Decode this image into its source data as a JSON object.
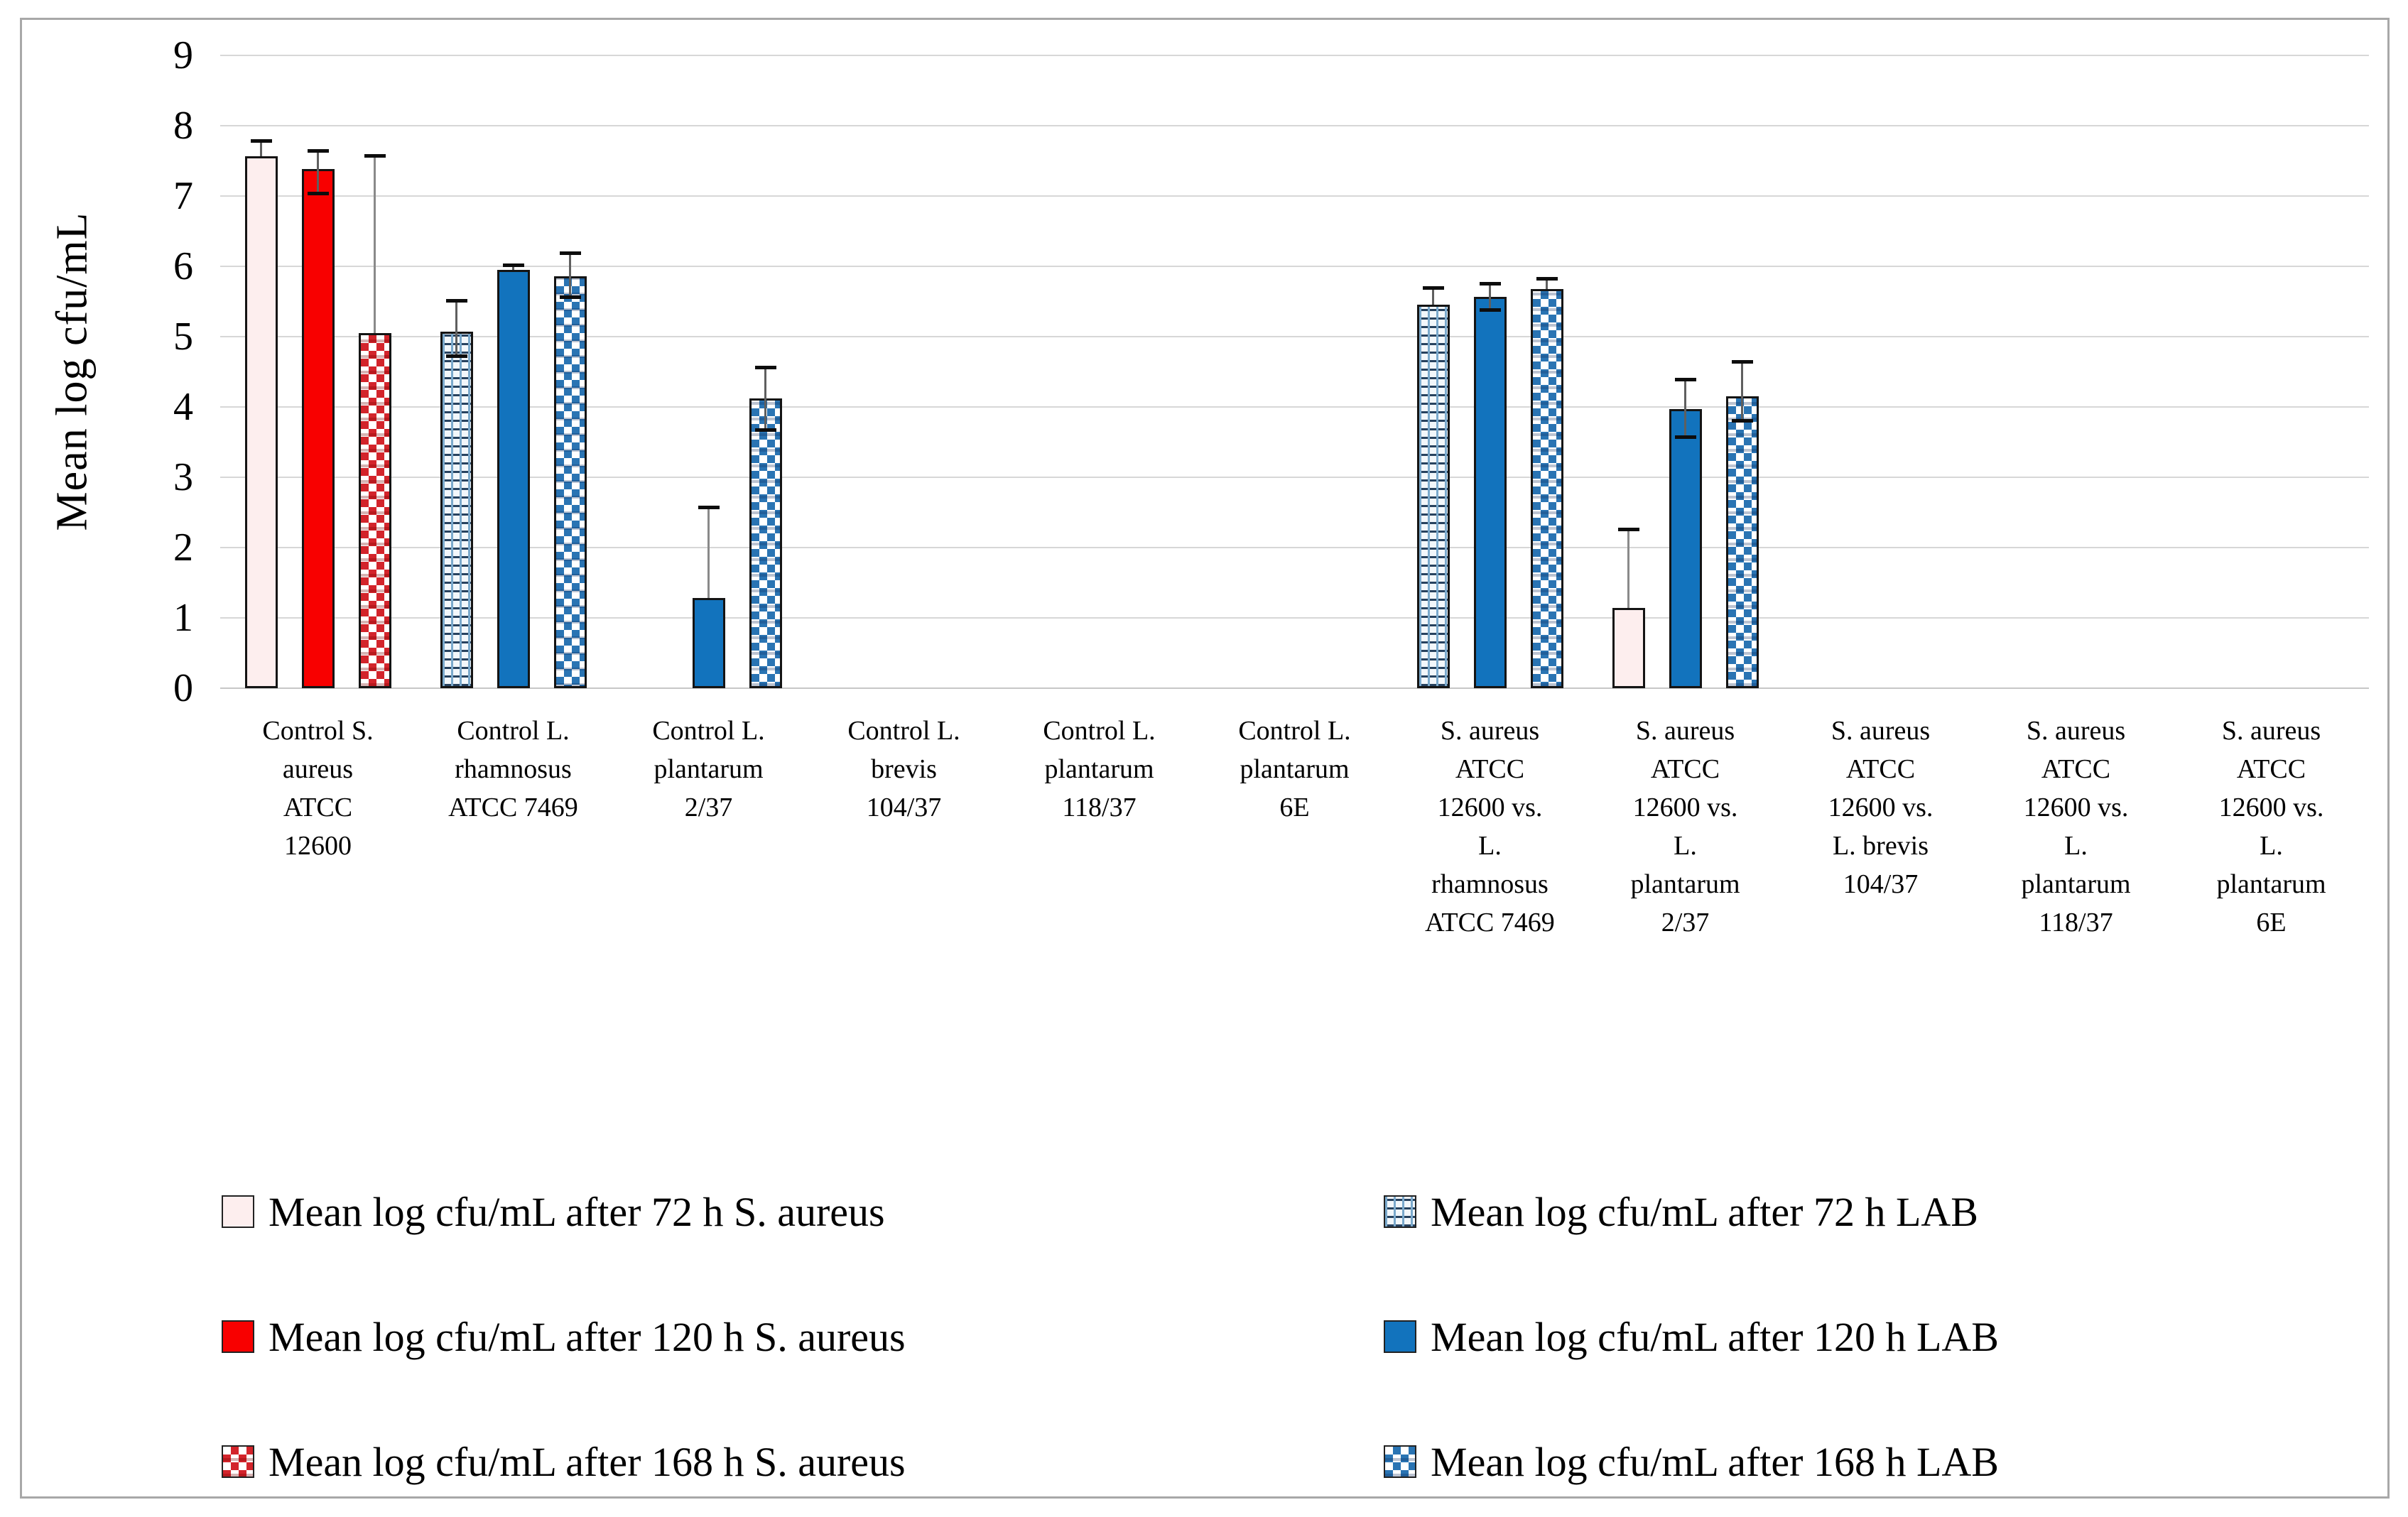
{
  "chart_data": {
    "type": "bar",
    "title": "",
    "ylabel": "Mean log cfu/mL",
    "xlabel": "",
    "ylim": [
      0,
      9
    ],
    "yticks": [
      0,
      1,
      2,
      3,
      4,
      5,
      6,
      7,
      8,
      9
    ],
    "grid": "horizontal",
    "legend_position": "bottom-two-columns",
    "categories": [
      "Control S.\naureus\nATCC\n12600",
      "Control L.\nrhamnosus\nATCC 7469",
      "Control L.\nplantarum\n2/37",
      "Control L.\nbrevis\n104/37",
      "Control L.\nplantarum\n118/37",
      "Control L.\nplantarum\n6E",
      "S. aureus\nATCC\n12600 vs.\nL.\nrhamnosus\nATCC 7469",
      "S. aureus\nATCC\n12600 vs.\nL.\nplantarum\n2/37",
      "S. aureus\nATCC\n12600 vs.\nL. brevis\n104/37",
      "S. aureus\nATCC\n12600 vs.\nL.\nplantarum\n118/37",
      "S. aureus\nATCC\n12600 vs.\nL.\nplantarum\n6E"
    ],
    "series": [
      {
        "name": "Mean log cfu/mL after 72 h S. aureus",
        "pattern": "grid-red",
        "color": "#c62828",
        "slot": 0,
        "values": [
          7.57,
          null,
          null,
          null,
          null,
          null,
          null,
          1.14,
          null,
          null,
          null
        ],
        "err_up": [
          0.22,
          0,
          0,
          0,
          0,
          0,
          0,
          1.12,
          0,
          0,
          0
        ],
        "err_down": [
          0,
          0,
          0,
          0,
          0,
          0,
          0,
          0,
          0,
          0,
          0
        ]
      },
      {
        "name": "Mean log cfu/mL after 120 h S. aureus",
        "pattern": "solid-red",
        "color": "#f80000",
        "slot": 1,
        "values": [
          7.38,
          null,
          null,
          null,
          null,
          null,
          null,
          null,
          null,
          null,
          null
        ],
        "err_up": [
          0.27,
          0,
          0,
          0,
          0,
          0,
          0,
          0,
          0,
          0,
          0
        ],
        "err_down": [
          0.35,
          0,
          0,
          0,
          0,
          0,
          0,
          0,
          0,
          0,
          0
        ]
      },
      {
        "name": "Mean log cfu/mL after 168 h S. aureus",
        "pattern": "check-red",
        "color": "#d3242b",
        "slot": 2,
        "values": [
          5.05,
          null,
          null,
          null,
          null,
          null,
          null,
          null,
          null,
          null,
          null
        ],
        "err_up": [
          2.53,
          0,
          0,
          0,
          0,
          0,
          0,
          0,
          0,
          0,
          0
        ],
        "err_down": [
          0,
          0,
          0,
          0,
          0,
          0,
          0,
          0,
          0,
          0,
          0
        ]
      },
      {
        "name": "Mean log cfu/mL after 72 h LAB",
        "pattern": "grid-blue",
        "color": "#27425f",
        "slot": 0,
        "values": [
          null,
          5.07,
          null,
          null,
          null,
          null,
          5.45,
          null,
          null,
          null,
          null
        ],
        "err_up": [
          0,
          0.45,
          0,
          0,
          0,
          0,
          0.25,
          0,
          0,
          0,
          0
        ],
        "err_down": [
          0,
          0.35,
          0,
          0,
          0,
          0,
          0,
          0,
          0,
          0,
          0
        ]
      },
      {
        "name": "Mean log cfu/mL after 120 h LAB",
        "pattern": "solid-blue",
        "color": "#1273bd",
        "slot": 1,
        "values": [
          null,
          5.95,
          1.28,
          null,
          null,
          null,
          5.57,
          3.97,
          null,
          null,
          null
        ],
        "err_up": [
          0,
          0.07,
          1.3,
          0,
          0,
          0,
          0.19,
          0.42,
          0,
          0,
          0
        ],
        "err_down": [
          0,
          0,
          0,
          0,
          0,
          0,
          0.2,
          0.4,
          0,
          0,
          0
        ]
      },
      {
        "name": "Mean log cfu/mL after 168 h LAB",
        "pattern": "check-blue",
        "color": "#2a74b3",
        "slot": 2,
        "values": [
          null,
          5.86,
          4.12,
          null,
          null,
          null,
          5.68,
          4.15,
          null,
          null,
          null
        ],
        "err_up": [
          0,
          0.33,
          0.45,
          0,
          0,
          0,
          0.15,
          0.5,
          0,
          0,
          0
        ],
        "err_down": [
          0,
          0.3,
          0.45,
          0,
          0,
          0,
          0,
          0.35,
          0,
          0,
          0
        ]
      }
    ],
    "legend": {
      "columns": [
        [
          0,
          1,
          2
        ],
        [
          3,
          4,
          5
        ]
      ]
    }
  }
}
